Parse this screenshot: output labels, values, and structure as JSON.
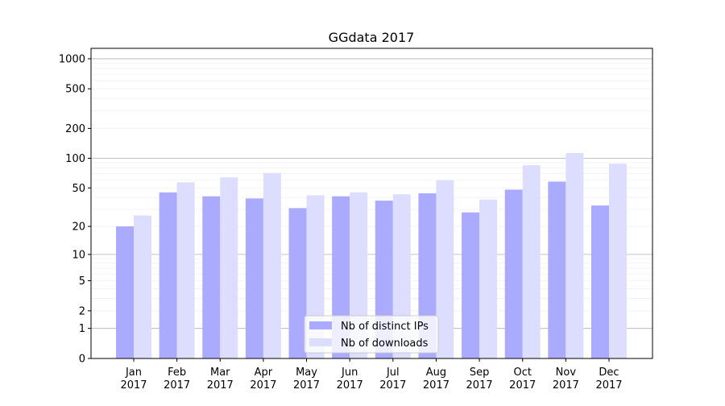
{
  "chart_data": {
    "type": "bar",
    "title": "GGdata 2017",
    "xlabel": "",
    "ylabel": "",
    "yscale": "log(1+y)",
    "ylim": [
      0,
      1272
    ],
    "grid": true,
    "legend_placement": "lower-center",
    "y_ticks": [
      0,
      1,
      2,
      5,
      10,
      20,
      50,
      100,
      200,
      500,
      1000
    ],
    "categories": [
      "Jan\n2017",
      "Feb\n2017",
      "Mar\n2017",
      "Apr\n2017",
      "May\n2017",
      "Jun\n2017",
      "Jul\n2017",
      "Aug\n2017",
      "Sep\n2017",
      "Oct\n2017",
      "Nov\n2017",
      "Dec\n2017"
    ],
    "series": [
      {
        "name": "Nb of distinct IPs",
        "color": "#aaaaff",
        "values": [
          20,
          45,
          41,
          39,
          31,
          41,
          37,
          44,
          28,
          48,
          58,
          33
        ]
      },
      {
        "name": "Nb of downloads",
        "color": "#ddddff",
        "values": [
          26,
          57,
          64,
          71,
          42,
          45,
          43,
          60,
          38,
          85,
          113,
          88
        ]
      }
    ]
  }
}
